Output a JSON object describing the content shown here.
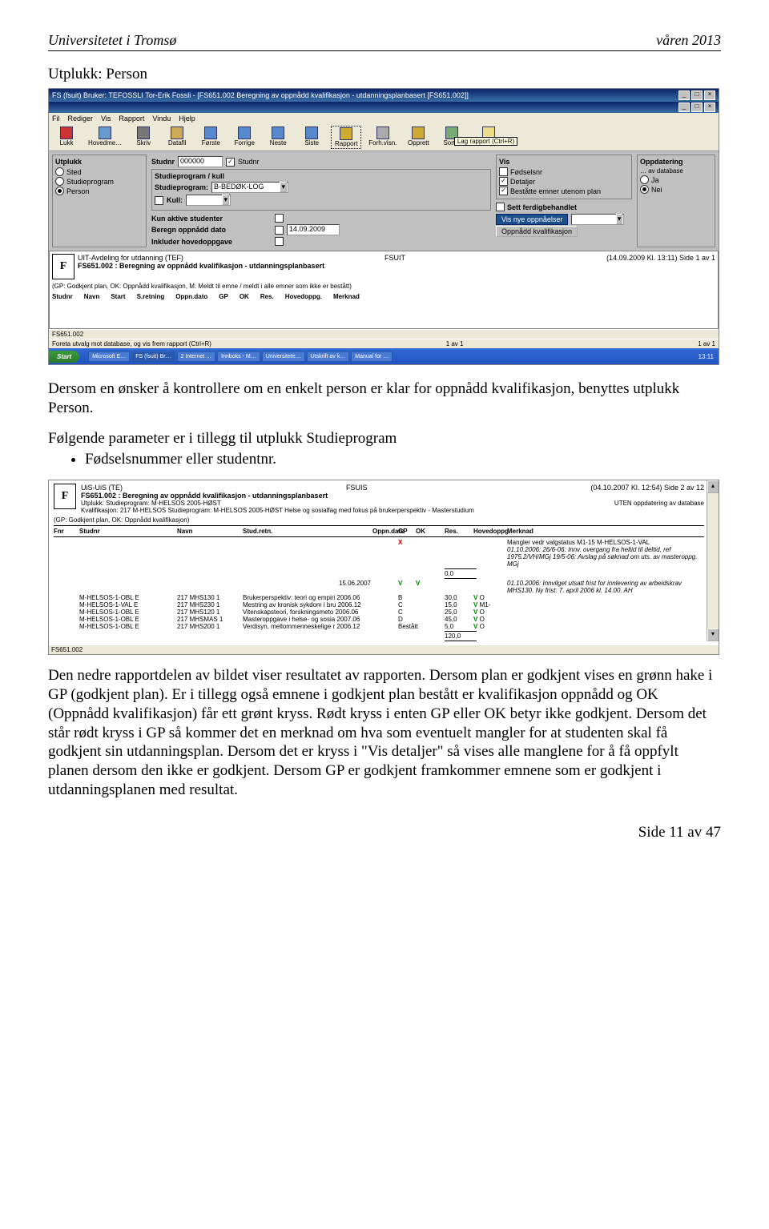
{
  "header": {
    "left": "Universitetet i Tromsø",
    "right": "våren 2013"
  },
  "section_title": "Utplukk: Person",
  "app": {
    "title": "FS (fsuit) Bruker: TEFOSSLI Tor-Erik Fossli - [FS651.002 Beregning av oppnådd kvalifikasjon - utdanningsplanbasert [FS651.002]]",
    "menus": [
      "Fil",
      "Rediger",
      "Vis",
      "Rapport",
      "Vindu",
      "Hjelp"
    ],
    "toolbar": [
      "Lukk",
      "Hovedme…",
      "Skriv",
      "Datafil",
      "Første",
      "Forrige",
      "Neste",
      "Siste",
      "Rapport",
      "Forh.visn.",
      "Opprett",
      "Sorter",
      "Adr.lapper"
    ],
    "toolbar_note": "Lag rapport (Ctrl+R)",
    "utplukk": {
      "title": "Utplukk",
      "items": [
        "Sted",
        "Studieprogram",
        "Person"
      ],
      "selected": "Person"
    },
    "studnr": {
      "label": "Studnr",
      "value": "000000",
      "check_label": "Studnr"
    },
    "stu_block_title": "Studieprogram / kull",
    "stu_prog_label": "Studieprogram:",
    "stu_prog_value": "B-BEDØK-LOG",
    "kull_label": "Kull:",
    "vis": {
      "title": "Vis",
      "items": [
        {
          "label": "Fødselsnr",
          "checked": false
        },
        {
          "label": "Detaljer",
          "checked": true
        },
        {
          "label": "Beståtte emner utenom plan",
          "checked": true
        }
      ]
    },
    "oppd": {
      "title": "Oppdatering",
      "radios": [
        {
          "label": "Ja",
          "checked": false
        },
        {
          "label": "Nei",
          "checked": true
        }
      ],
      "_box": "… av database"
    },
    "row1_label": "Kun aktive studenter",
    "row2_label": "Beregn oppnådd dato",
    "row2_value": "14.09.2009",
    "row3_label": "Inkluder hovedoppgave",
    "ferdig_label": "Sett ferdigbehandlet",
    "btn_blue": "Vis nye oppnåelser",
    "btn_grey": "Oppnådd kvalifikasjon",
    "report": {
      "inst": "UIT-Avdeling for utdanning (TEF)",
      "user": "FSUIT",
      "stamp": "(14.09.2009 Kl. 13:11) Side 1 av 1",
      "title": "FS651.002 : Beregning av oppnådd kvalifikasjon - utdanningsplanbasert",
      "legend": "(GP: Godkjent plan, OK: Oppnådd kvalifikasjon, M: Meldt til emne / meldt i alle emner som ikke er bestått)",
      "cols": [
        "Studnr",
        "Navn",
        "Start",
        "S.retning",
        "Oppn.dato",
        "GP",
        "OK",
        "Res.",
        "Hovedoppg.",
        "Merknad"
      ]
    },
    "status_left": "FS651.002",
    "status_left2": "Foreta utvalg mot database, og vis frem rapport (Ctrl+R)",
    "status_mid1": "1 av 1",
    "status_mid2": "1 av 1"
  },
  "taskbar": {
    "start": "Start",
    "tasks": [
      "Microsoft E…",
      "FS (fsuit) Br…",
      "2 Internet …",
      "Innboks - M…",
      "Universitete…",
      "Utskrift av k…",
      "Manual for …"
    ],
    "tray": "13:11"
  },
  "para1": "Dersom en ønsker å kontrollere om en enkelt person er klar for oppnådd kvalifikasjon, benyttes utplukk Person.",
  "para2": "Følgende parameter er i tillegg til utplukk Studieprogram",
  "bullet1": "Fødselsnummer eller studentnr.",
  "report2": {
    "inst": "UiS-UiS  (TE)",
    "user": "FSUIS",
    "stamp": "(04.10.2007 Kl. 12:54) Side 2 av 12",
    "title": "FS651.002 : Beregning av oppnådd kvalifikasjon - utdanningsplanbasert",
    "sub1": "Utplukk: Studieprogram: M-HELSOS 2005-HØST",
    "sub1r": "UTEN oppdatering av database",
    "sub2": "Kvalifikasjon: 217 M-HELSOS Studieprogram: M-HELSOS 2005-HØST Helse og sosialfag med fokus på brukerperspektiv - Masterstudium",
    "legend": "(GP: Godkjent plan, OK: Oppnådd kvalifikasjon)",
    "cols": [
      "Fnr",
      "Studnr",
      "Navn",
      "Stud.retn.",
      "Oppn.dato",
      "GP",
      "OK",
      "Res.",
      "Hovedoppg.",
      "Merknad"
    ],
    "merknad1": "Mangler vedr valgstatus M1-15 M-HELSOS-1-VAL",
    "merknad2": "01.10.2006: 26/6-06: Innv. overgang fra heltid til deltid, ref 1975.2/VH/MGj 19/5-06: Avslag på søknad om uts. av masteroppg. MGj",
    "sum0": "0,0",
    "date2": "15.06.2007",
    "merknad3": "01.10.2006: Innvilget utsatt frist for innlevering av arbeidskrav MHS130. Ny frist: 7. april 2006 kl. 14.00. AH",
    "rows": [
      {
        "c1": "M-HELSOS-1-OBL E",
        "c2": "217 MHS130 1",
        "c3": "Brukerperspektiv: teori og empiri",
        "c4": "2006.06",
        "g": "B",
        "p": "30,0",
        "v": "V",
        "h": "O"
      },
      {
        "c1": "M-HELSOS-1-VAL E",
        "c2": "217 MHS230 1",
        "c3": "Mestring av kronisk sykdom i bru",
        "c4": "2006.12",
        "g": "C",
        "p": "15,0",
        "v": "V",
        "h": "M1-"
      },
      {
        "c1": "M-HELSOS-1-OBL E",
        "c2": "217 MHS120 1",
        "c3": "Vitenskapsteori, forskningsmeto",
        "c4": "2006.06",
        "g": "C",
        "p": "25,0",
        "v": "V",
        "h": "O"
      },
      {
        "c1": "M-HELSOS-1-OBL E",
        "c2": "217 MHSMAS 1",
        "c3": "Masteroppgave i helse- og sosia",
        "c4": "2007.06",
        "g": "D",
        "p": "45,0",
        "v": "V",
        "h": "O"
      },
      {
        "c1": "M-HELSOS-1-OBL E",
        "c2": "217 MHS200 1",
        "c3": "Verdisyn, mellommenneskelige r",
        "c4": "2006.12",
        "g": "Bestått",
        "p": "5,0",
        "v": "V",
        "h": "O"
      }
    ],
    "sum": "120,0",
    "foot": "FS651.002"
  },
  "para3": "Den nedre rapportdelen av bildet viser resultatet av rapporten. Dersom plan er godkjent vises en grønn hake i GP (godkjent plan). Er i tillegg også emnene i godkjent plan bestått er kvalifikasjon oppnådd og OK (Oppnådd kvalifikasjon) får ett grønt kryss. Rødt kryss i enten GP eller OK betyr ikke godkjent. Dersom det står rødt kryss i GP så kommer det en merknad om hva som eventuelt mangler for at studenten skal få godkjent sin utdanningsplan. Dersom det er kryss i \"Vis detaljer\" så vises alle manglene for å få oppfylt planen dersom den ikke er godkjent. Dersom GP er godkjent framkommer emnene som er godkjent i utdanningsplanen med resultat.",
  "page_num": "Side 11 av 47"
}
